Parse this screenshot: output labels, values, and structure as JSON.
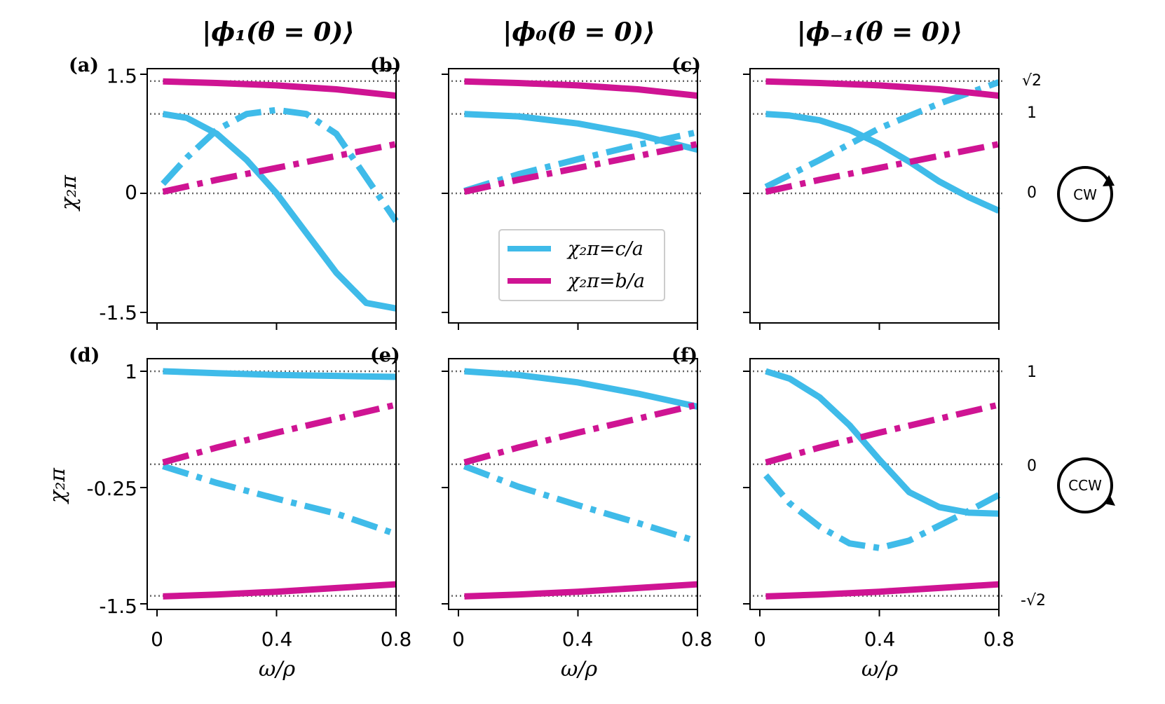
{
  "column_titles": [
    "|ϕ₁(θ = 0)⟩",
    "|ϕ₀(θ = 0)⟩",
    "|ϕ₋₁(θ = 0)⟩"
  ],
  "axes": {
    "xlabel": "ω/ρ",
    "ylabel": "χ₂π",
    "xticks": [
      "0",
      "0.4",
      "0.8"
    ]
  },
  "rows": [
    {
      "yticks": [
        "1.5",
        "0",
        "-1.5"
      ],
      "ref_labels": [
        "√2",
        "1",
        "0"
      ],
      "rotation": "CW"
    },
    {
      "yticks": [
        "1",
        "-0.25",
        "-1.5"
      ],
      "ref_labels": [
        "1",
        "0",
        "-√2"
      ],
      "rotation": "CCW"
    }
  ],
  "legend": [
    {
      "label": "χ₂π=c/a",
      "color": "#3fbbe9"
    },
    {
      "label": "χ₂π=b/a",
      "color": "#cf1493"
    }
  ],
  "colors": {
    "cyan": "#3fbbe9",
    "magenta": "#cf1493"
  },
  "chart_data": [
    {
      "type": "line",
      "panel": "(a)",
      "xlim": [
        0,
        0.8
      ],
      "ylim": [
        -1.5,
        1.5
      ],
      "grid": false,
      "reference_lines": [
        1.414,
        1,
        0
      ],
      "series": [
        {
          "ratio": "c/a",
          "style": "solid",
          "x": [
            0.02,
            0.1,
            0.2,
            0.3,
            0.4,
            0.5,
            0.6,
            0.7,
            0.8
          ],
          "y": [
            1.0,
            0.95,
            0.75,
            0.42,
            0.0,
            -0.5,
            -1.0,
            -1.38,
            -1.45
          ]
        },
        {
          "ratio": "c/a",
          "style": "dashdot",
          "x": [
            0.02,
            0.1,
            0.2,
            0.3,
            0.4,
            0.5,
            0.6,
            0.7,
            0.8
          ],
          "y": [
            0.12,
            0.45,
            0.8,
            1.0,
            1.05,
            1.0,
            0.75,
            0.2,
            -0.35
          ]
        },
        {
          "ratio": "b/a",
          "style": "solid",
          "x": [
            0.02,
            0.2,
            0.4,
            0.6,
            0.8
          ],
          "y": [
            1.41,
            1.39,
            1.36,
            1.31,
            1.23
          ]
        },
        {
          "ratio": "b/a",
          "style": "dashdot",
          "x": [
            0.02,
            0.2,
            0.4,
            0.6,
            0.8
          ],
          "y": [
            0.02,
            0.17,
            0.32,
            0.47,
            0.62
          ]
        }
      ]
    },
    {
      "type": "line",
      "panel": "(b)",
      "xlim": [
        0,
        0.8
      ],
      "ylim": [
        -1.5,
        1.5
      ],
      "grid": false,
      "reference_lines": [
        1.414,
        1,
        0
      ],
      "series": [
        {
          "ratio": "c/a",
          "style": "solid",
          "x": [
            0.02,
            0.2,
            0.4,
            0.6,
            0.8
          ],
          "y": [
            1.0,
            0.97,
            0.88,
            0.74,
            0.55
          ]
        },
        {
          "ratio": "c/a",
          "style": "dashdot",
          "x": [
            0.02,
            0.2,
            0.4,
            0.6,
            0.8
          ],
          "y": [
            0.03,
            0.24,
            0.43,
            0.61,
            0.77
          ]
        },
        {
          "ratio": "b/a",
          "style": "solid",
          "x": [
            0.02,
            0.2,
            0.4,
            0.6,
            0.8
          ],
          "y": [
            1.41,
            1.39,
            1.36,
            1.31,
            1.23
          ]
        },
        {
          "ratio": "b/a",
          "style": "dashdot",
          "x": [
            0.02,
            0.2,
            0.4,
            0.6,
            0.8
          ],
          "y": [
            0.02,
            0.17,
            0.32,
            0.47,
            0.62
          ]
        }
      ]
    },
    {
      "type": "line",
      "panel": "(c)",
      "xlim": [
        0,
        0.8
      ],
      "ylim": [
        -1.5,
        1.5
      ],
      "grid": false,
      "reference_lines": [
        1.414,
        1,
        0
      ],
      "series": [
        {
          "ratio": "c/a",
          "style": "solid",
          "x": [
            0.02,
            0.1,
            0.2,
            0.3,
            0.4,
            0.5,
            0.6,
            0.7,
            0.8
          ],
          "y": [
            1.0,
            0.98,
            0.92,
            0.8,
            0.62,
            0.4,
            0.15,
            -0.05,
            -0.22
          ]
        },
        {
          "ratio": "c/a",
          "style": "dashdot",
          "x": [
            0.02,
            0.2,
            0.4,
            0.6,
            0.8
          ],
          "y": [
            0.08,
            0.42,
            0.82,
            1.13,
            1.4
          ]
        },
        {
          "ratio": "b/a",
          "style": "solid",
          "x": [
            0.02,
            0.2,
            0.4,
            0.6,
            0.8
          ],
          "y": [
            1.41,
            1.39,
            1.36,
            1.31,
            1.23
          ]
        },
        {
          "ratio": "b/a",
          "style": "dashdot",
          "x": [
            0.02,
            0.2,
            0.4,
            0.6,
            0.8
          ],
          "y": [
            0.02,
            0.17,
            0.32,
            0.47,
            0.62
          ]
        }
      ]
    },
    {
      "type": "line",
      "panel": "(d)",
      "xlim": [
        0,
        0.8
      ],
      "ylim": [
        -1.5,
        1
      ],
      "grid": false,
      "reference_lines": [
        1,
        0,
        -1.414
      ],
      "series": [
        {
          "ratio": "c/a",
          "style": "solid",
          "x": [
            0.02,
            0.2,
            0.4,
            0.6,
            0.8
          ],
          "y": [
            1.0,
            0.98,
            0.96,
            0.95,
            0.94
          ]
        },
        {
          "ratio": "c/a",
          "style": "dashdot",
          "x": [
            0.02,
            0.2,
            0.4,
            0.6,
            0.8
          ],
          "y": [
            -0.02,
            -0.2,
            -0.37,
            -0.53,
            -0.75
          ]
        },
        {
          "ratio": "b/a",
          "style": "solid",
          "x": [
            0.02,
            0.2,
            0.4,
            0.6,
            0.8
          ],
          "y": [
            -1.42,
            -1.4,
            -1.37,
            -1.33,
            -1.29
          ]
        },
        {
          "ratio": "b/a",
          "style": "dashdot",
          "x": [
            0.02,
            0.2,
            0.4,
            0.6,
            0.8
          ],
          "y": [
            0.02,
            0.18,
            0.34,
            0.49,
            0.64
          ]
        }
      ]
    },
    {
      "type": "line",
      "panel": "(e)",
      "xlim": [
        0,
        0.8
      ],
      "ylim": [
        -1.5,
        1
      ],
      "grid": false,
      "reference_lines": [
        1,
        0,
        -1.414
      ],
      "series": [
        {
          "ratio": "c/a",
          "style": "solid",
          "x": [
            0.02,
            0.2,
            0.4,
            0.6,
            0.8
          ],
          "y": [
            1.0,
            0.96,
            0.88,
            0.76,
            0.62
          ]
        },
        {
          "ratio": "c/a",
          "style": "dashdot",
          "x": [
            0.02,
            0.2,
            0.4,
            0.6,
            0.8
          ],
          "y": [
            -0.02,
            -0.24,
            -0.44,
            -0.63,
            -0.83
          ]
        },
        {
          "ratio": "b/a",
          "style": "solid",
          "x": [
            0.02,
            0.2,
            0.4,
            0.6,
            0.8
          ],
          "y": [
            -1.42,
            -1.4,
            -1.37,
            -1.33,
            -1.29
          ]
        },
        {
          "ratio": "b/a",
          "style": "dashdot",
          "x": [
            0.02,
            0.2,
            0.4,
            0.6,
            0.8
          ],
          "y": [
            0.02,
            0.18,
            0.34,
            0.49,
            0.64
          ]
        }
      ]
    },
    {
      "type": "line",
      "panel": "(f)",
      "xlim": [
        0,
        0.8
      ],
      "ylim": [
        -1.5,
        1
      ],
      "grid": false,
      "reference_lines": [
        1,
        0,
        -1.414
      ],
      "series": [
        {
          "ratio": "c/a",
          "style": "solid",
          "x": [
            0.02,
            0.1,
            0.2,
            0.3,
            0.4,
            0.5,
            0.6,
            0.7,
            0.8
          ],
          "y": [
            1.0,
            0.92,
            0.72,
            0.42,
            0.05,
            -0.3,
            -0.46,
            -0.52,
            -0.53
          ]
        },
        {
          "ratio": "c/a",
          "style": "dashdot",
          "x": [
            0.02,
            0.1,
            0.2,
            0.3,
            0.4,
            0.5,
            0.6,
            0.7,
            0.8
          ],
          "y": [
            -0.12,
            -0.42,
            -0.67,
            -0.85,
            -0.9,
            -0.82,
            -0.66,
            -0.5,
            -0.33
          ]
        },
        {
          "ratio": "b/a",
          "style": "solid",
          "x": [
            0.02,
            0.2,
            0.4,
            0.6,
            0.8
          ],
          "y": [
            -1.42,
            -1.4,
            -1.37,
            -1.33,
            -1.29
          ]
        },
        {
          "ratio": "b/a",
          "style": "dashdot",
          "x": [
            0.02,
            0.2,
            0.4,
            0.6,
            0.8
          ],
          "y": [
            0.02,
            0.18,
            0.34,
            0.49,
            0.64
          ]
        }
      ]
    }
  ]
}
